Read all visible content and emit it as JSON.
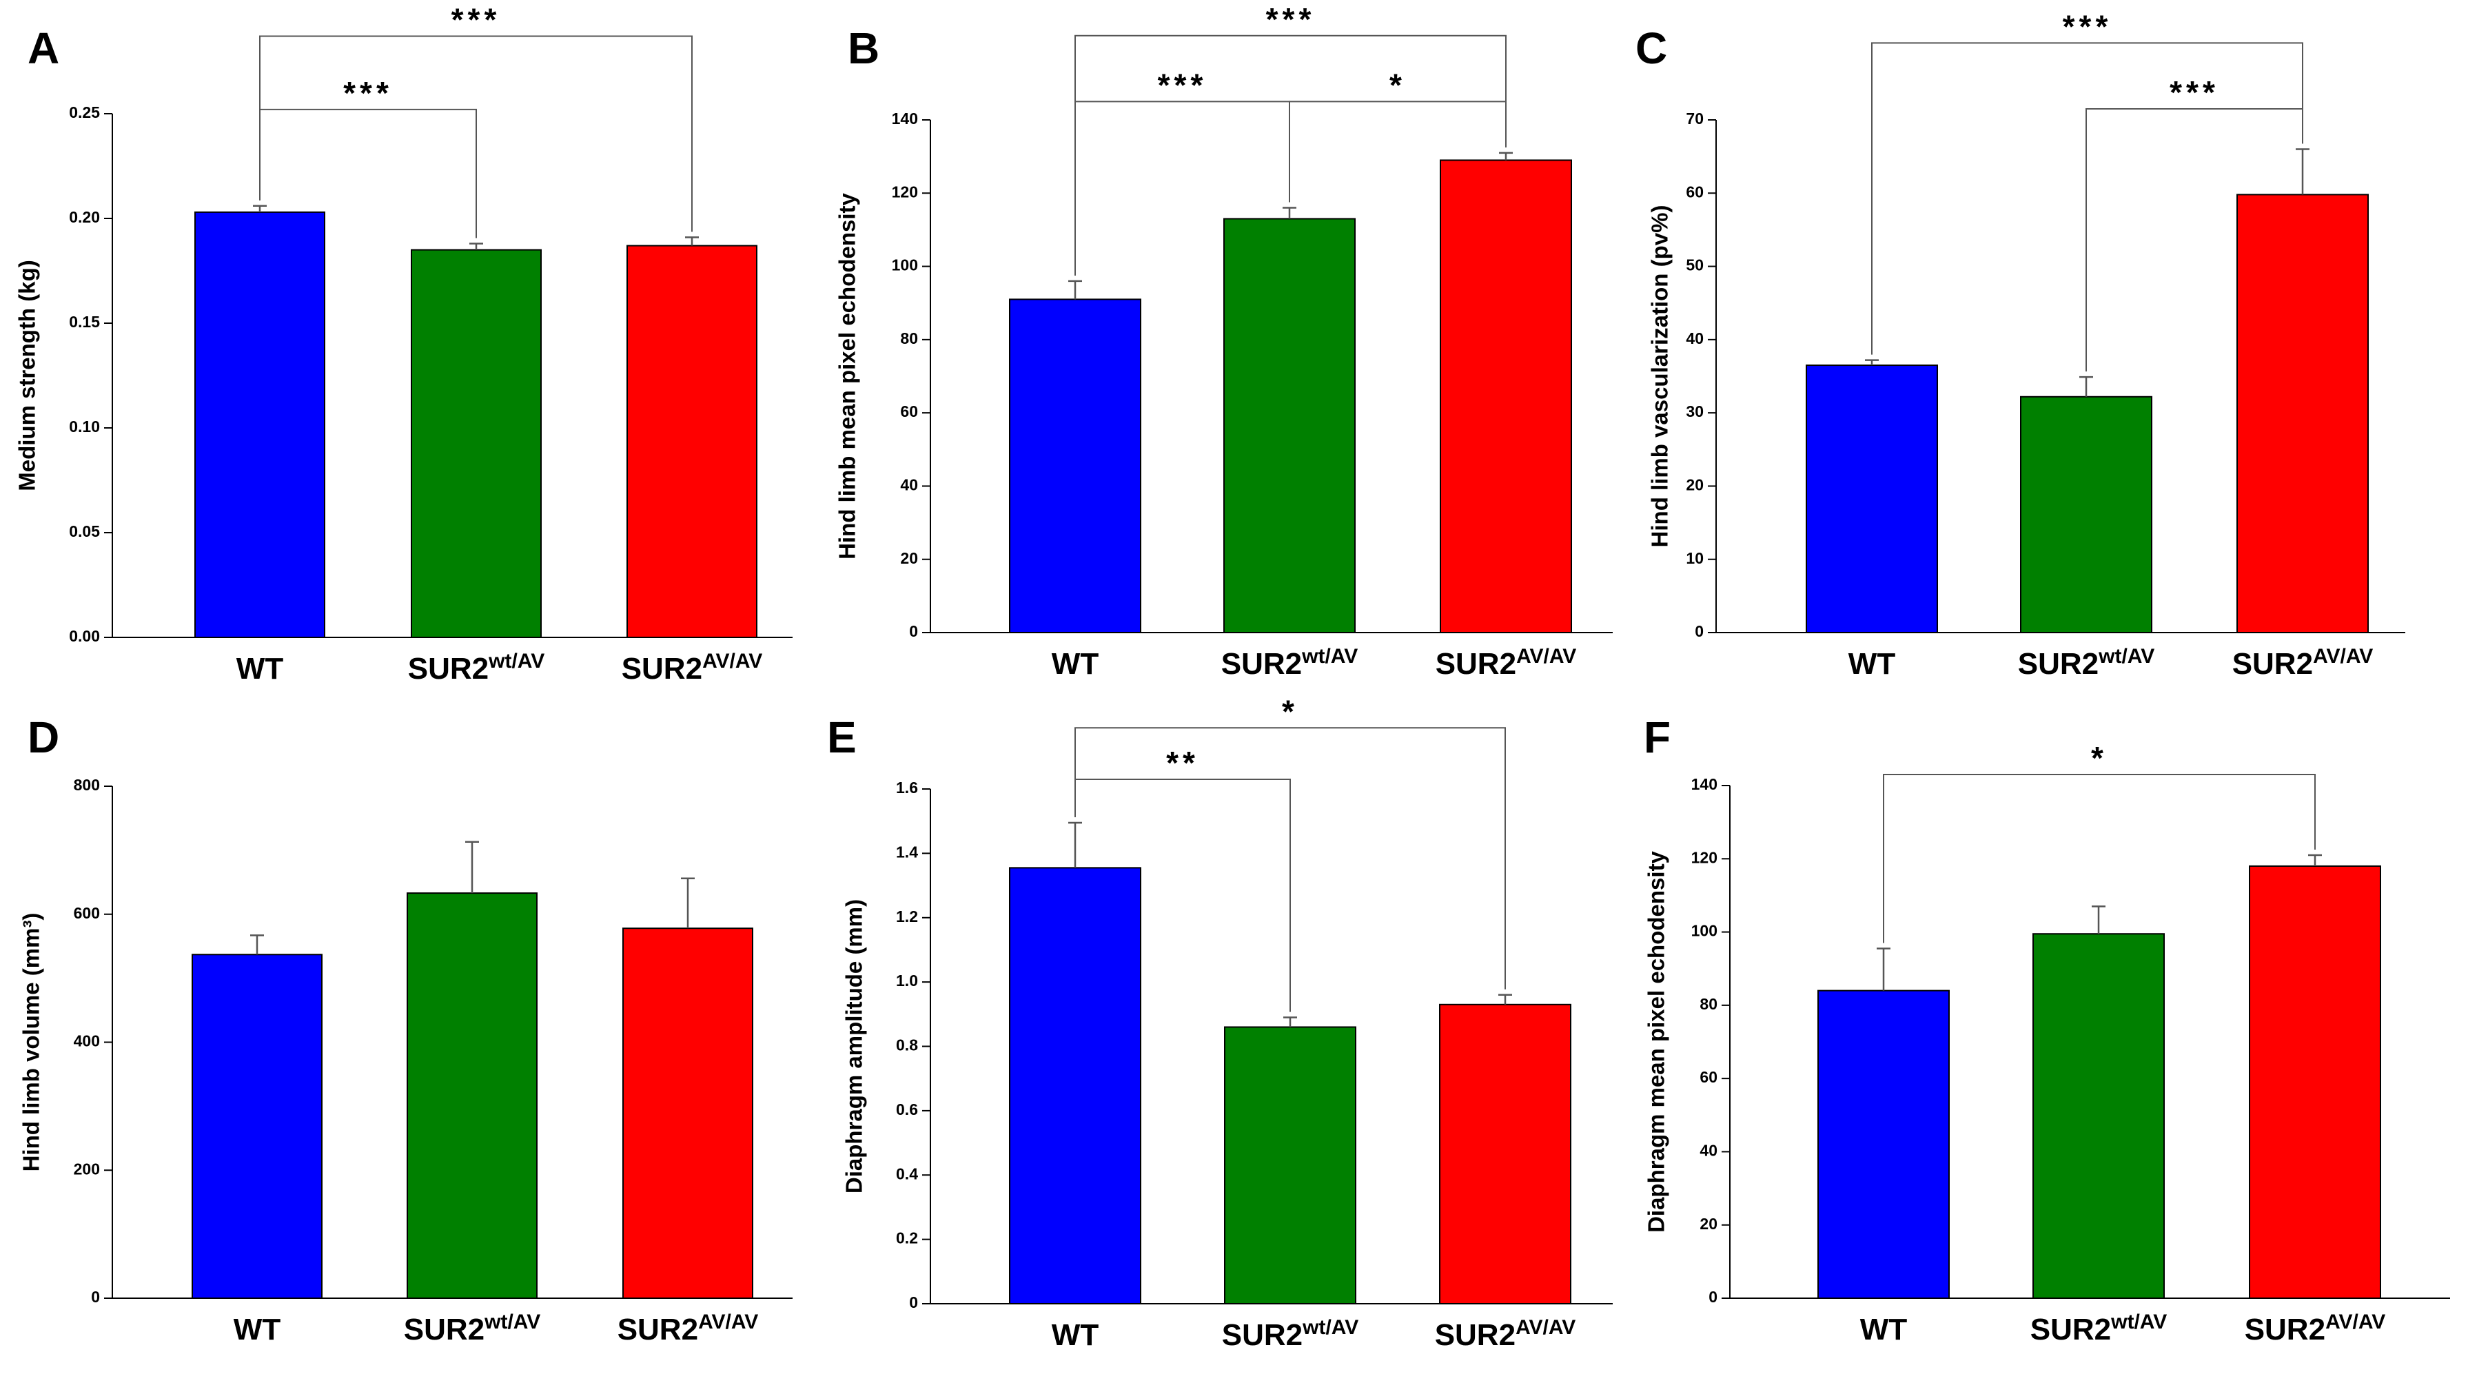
{
  "chart_data": [
    {
      "panel": "A",
      "type": "bar",
      "ylabel": "Medium strength (kg)",
      "ylim": [
        0,
        0.25
      ],
      "yticks": [
        "0.00",
        "0.05",
        "0.10",
        "0.15",
        "0.20",
        "0.25"
      ],
      "categories": [
        {
          "base": "WT",
          "sup": ""
        },
        {
          "base": "SUR2",
          "sup": "wt/AV"
        },
        {
          "base": "SUR2",
          "sup": "AV/AV"
        }
      ],
      "values": [
        0.203,
        0.185,
        0.187
      ],
      "errors": [
        0.003,
        0.003,
        0.004
      ],
      "colors": [
        "#0000ff",
        "#008000",
        "#ff0000"
      ],
      "significance": [
        {
          "from": 0,
          "to": 1,
          "label": "***",
          "level": 0.252
        },
        {
          "from": 0,
          "to": 2,
          "label": "***",
          "level": 0.287
        }
      ]
    },
    {
      "panel": "B",
      "type": "bar",
      "ylabel": "Hind limb mean pixel echodensity",
      "ylim": [
        0,
        140
      ],
      "yticks": [
        "0",
        "20",
        "40",
        "60",
        "80",
        "100",
        "120",
        "140"
      ],
      "categories": [
        {
          "base": "WT",
          "sup": ""
        },
        {
          "base": "SUR2",
          "sup": "wt/AV"
        },
        {
          "base": "SUR2",
          "sup": "AV/AV"
        }
      ],
      "values": [
        91,
        113,
        129
      ],
      "errors": [
        5,
        3,
        2
      ],
      "colors": [
        "#0000ff",
        "#008000",
        "#ff0000"
      ],
      "significance": [
        {
          "from": 0,
          "to": 1,
          "label": "***",
          "level": 145
        },
        {
          "from": 1,
          "to": 2,
          "label": "*",
          "level": 145
        },
        {
          "from": 0,
          "to": 2,
          "label": "***",
          "level": 163
        }
      ]
    },
    {
      "panel": "C",
      "type": "bar",
      "ylabel": "Hind limb vascularization (pv%)",
      "ylim": [
        0,
        70
      ],
      "yticks": [
        "0",
        "10",
        "20",
        "30",
        "40",
        "50",
        "60",
        "70"
      ],
      "categories": [
        {
          "base": "WT",
          "sup": ""
        },
        {
          "base": "SUR2",
          "sup": "wt/AV"
        },
        {
          "base": "SUR2",
          "sup": "AV/AV"
        }
      ],
      "values": [
        36.5,
        32.2,
        59.8
      ],
      "errors": [
        0.7,
        2.7,
        6.2
      ],
      "colors": [
        "#0000ff",
        "#008000",
        "#ff0000"
      ],
      "significance": [
        {
          "from": 1,
          "to": 2,
          "label": "***",
          "level": 71.5
        },
        {
          "from": 0,
          "to": 2,
          "label": "***",
          "level": 80.5
        }
      ]
    },
    {
      "panel": "D",
      "type": "bar",
      "ylabel": "Hind limb volume (mm³)",
      "ylim": [
        0,
        800
      ],
      "yticks": [
        "0",
        "200",
        "400",
        "600",
        "800"
      ],
      "categories": [
        {
          "base": "WT",
          "sup": ""
        },
        {
          "base": "SUR2",
          "sup": "wt/AV"
        },
        {
          "base": "SUR2",
          "sup": "AV/AV"
        }
      ],
      "values": [
        537,
        633,
        578
      ],
      "errors": [
        30,
        80,
        78
      ],
      "colors": [
        "#0000ff",
        "#008000",
        "#ff0000"
      ],
      "significance": []
    },
    {
      "panel": "E",
      "type": "bar",
      "ylabel": "Diaphragm amplitude (mm)",
      "ylim": [
        0,
        1.6
      ],
      "yticks": [
        "0",
        "0.2",
        "0.4",
        "0.6",
        "0.8",
        "1.0",
        "1.2",
        "1.4",
        "1.6"
      ],
      "categories": [
        {
          "base": "WT",
          "sup": ""
        },
        {
          "base": "SUR2",
          "sup": "wt/AV"
        },
        {
          "base": "SUR2",
          "sup": "AV/AV"
        }
      ],
      "values": [
        1.355,
        0.86,
        0.93
      ],
      "errors": [
        0.14,
        0.03,
        0.03
      ],
      "colors": [
        "#0000ff",
        "#008000",
        "#ff0000"
      ],
      "significance": [
        {
          "from": 0,
          "to": 1,
          "label": "**",
          "level": 1.63
        },
        {
          "from": 0,
          "to": 2,
          "label": "*",
          "level": 1.79
        }
      ]
    },
    {
      "panel": "F",
      "type": "bar",
      "ylabel": "Diaphragm mean pixel echodensity",
      "ylim": [
        0,
        140
      ],
      "yticks": [
        "0",
        "20",
        "40",
        "60",
        "80",
        "100",
        "120",
        "140"
      ],
      "categories": [
        {
          "base": "WT",
          "sup": ""
        },
        {
          "base": "SUR2",
          "sup": "wt/AV"
        },
        {
          "base": "SUR2",
          "sup": "AV/AV"
        }
      ],
      "values": [
        84,
        99.5,
        118
      ],
      "errors": [
        11.5,
        7.5,
        3
      ],
      "colors": [
        "#0000ff",
        "#008000",
        "#ff0000"
      ],
      "significance": [
        {
          "from": 0,
          "to": 2,
          "label": "*",
          "level": 143
        }
      ]
    }
  ]
}
